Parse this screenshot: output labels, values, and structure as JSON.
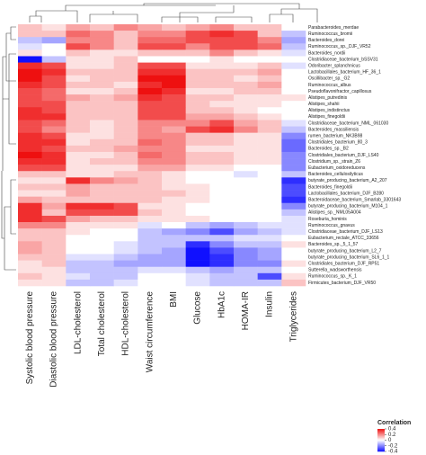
{
  "chart_data": {
    "type": "heatmap",
    "columns": [
      "Systolic blood pressure",
      "Diastolic blood pressure",
      "LDL-cholesterol",
      "Total cholesterol",
      "HDL-cholesterol",
      "Waist circumference",
      "BMI",
      "Glucose",
      "HbA1c",
      "HOMA-IR",
      "Insulin",
      "Triglycerides"
    ],
    "rows": [
      "Parabacteroides_merdae",
      "Ruminococcus_bromii",
      "Bacteroides_dorei",
      "Ruminococcus_sp._DJF_VR52",
      "Bacteroides_nordii",
      "Clostridiaceae_bacterium_bSSV31",
      "Odoribacter_splanchnicus",
      "Lactobacillales_bacterium_HF_36_1",
      "Oscillibacter_sp._G2",
      "Ruminococcus_albus",
      "Pseudoflavonifractor_capillosus",
      "Alistipes_putredinis",
      "Alistipes_shahii",
      "Alistipes_indistinctus",
      "Alistipes_finegoldii",
      "Clostridiaceae_bacterium_NML_061030",
      "Bacteroides_massiliensis",
      "rumen_bacterium_NK3B98",
      "Clostridiales_bacterium_80_3",
      "Bacteroides_sp._B2",
      "Clostridiales_bacterium_DJF_LS40",
      "Clostridium_sp._strain_Z6",
      "Eubacterium_oxidoreducens",
      "Bacteroides_cellulosilyticus",
      "butyrate_producing_bacterium_A2_207",
      "Bacteroides_finegoldii",
      "Lactobacillales_bacterium_DJF_B280",
      "Bacteroidaceae_bacterium_Smarlab_3301643",
      "butyrate_producing_bacterium_M104_1",
      "Alistipes_sp._NML05A004",
      "Roseburia_hominis",
      "Ruminococcus_gnavus",
      "Clostridiaceae_bacterium_DJF_LS13",
      "Eubacterium_rectale_ATCC_33656",
      "Bacteroides_sp._5_1_57",
      "butyrate_producing_bacterium_L2_7",
      "butyrate_producing_bacterium_SL6_1_1",
      "Clostridiales_bacterium_DJF_RP51",
      "Sutterella_wadsworthensis",
      "Ruminococcus_sp._K_1",
      "Firmicutes_bacterium_DJF_VR50"
    ],
    "values": [
      [
        0.1,
        0.05,
        0.15,
        0.1,
        0.2,
        0.15,
        0.1,
        0.15,
        0.2,
        0.1,
        0.1,
        0
      ],
      [
        0.1,
        0.1,
        0.25,
        0.2,
        0.1,
        0.2,
        0.2,
        0.3,
        0.35,
        0.3,
        0.1,
        -0.1
      ],
      [
        -0.1,
        -0.15,
        0.2,
        0.2,
        0.1,
        0.25,
        0.25,
        0.3,
        0.3,
        0.3,
        0.2,
        -0.15
      ],
      [
        -0.05,
        0,
        0.3,
        0.2,
        0.1,
        0.3,
        0.3,
        0.2,
        0.3,
        0.3,
        0.25,
        -0.1
      ],
      [
        0.05,
        0,
        0.1,
        0.05,
        0.05,
        0.1,
        0.1,
        0.1,
        0.2,
        0.1,
        0.05,
        -0.05
      ],
      [
        -0.4,
        -0.1,
        0.05,
        0.05,
        0.1,
        0,
        0,
        0,
        0.05,
        0,
        0,
        0
      ],
      [
        0.35,
        0.3,
        0.05,
        0.05,
        0.1,
        0.3,
        0.3,
        0.05,
        0.05,
        0.05,
        0.1,
        -0.05
      ],
      [
        0.4,
        0.35,
        0.1,
        0.1,
        0.1,
        0.35,
        0.35,
        0.1,
        0.1,
        0.1,
        0.15,
        0
      ],
      [
        0.4,
        0.3,
        0.05,
        0.1,
        0.1,
        0.4,
        0.4,
        0.1,
        0.1,
        0.05,
        0.1,
        0
      ],
      [
        0.35,
        0.3,
        0.1,
        0.1,
        0.05,
        0.35,
        0.4,
        0.1,
        0.1,
        0.1,
        0.15,
        0
      ],
      [
        0.3,
        0.25,
        0.05,
        0.05,
        0.1,
        0.4,
        0.35,
        0.05,
        0.05,
        0.1,
        0.1,
        0
      ],
      [
        0.3,
        0.25,
        0.15,
        0.1,
        0.15,
        0.35,
        0.3,
        0.1,
        0.1,
        0.05,
        0.05,
        0.05
      ],
      [
        0.3,
        0.3,
        0.1,
        0.1,
        0.1,
        0.3,
        0.3,
        0.1,
        0.05,
        0.05,
        0.05,
        0
      ],
      [
        0.35,
        0.3,
        0.1,
        0.1,
        0.1,
        0.3,
        0.3,
        0.1,
        0.1,
        0.05,
        0,
        0
      ],
      [
        0.35,
        0.35,
        0.1,
        0.1,
        0.1,
        0.3,
        0.3,
        0.15,
        0.15,
        0.1,
        0.05,
        0
      ],
      [
        0.3,
        0.25,
        0.1,
        0.05,
        0.1,
        0.2,
        0.2,
        0.2,
        0.3,
        0.15,
        0.1,
        -0.05
      ],
      [
        0.3,
        0.2,
        0.1,
        0.05,
        0.1,
        0.2,
        0.15,
        0.3,
        0.35,
        0.2,
        0.1,
        -0.1
      ],
      [
        0.35,
        0.3,
        0.05,
        0.05,
        0.1,
        0.2,
        0.2,
        0.1,
        0.1,
        0.05,
        0.05,
        -0.2
      ],
      [
        0.35,
        0.35,
        0.05,
        0.1,
        0.1,
        0.25,
        0.2,
        0.1,
        0.1,
        0.05,
        0.05,
        -0.25
      ],
      [
        0.35,
        0.3,
        0.1,
        0.1,
        0.15,
        0.2,
        0.2,
        0.05,
        0.05,
        0.05,
        0.05,
        -0.25
      ],
      [
        0.4,
        0.35,
        0.05,
        0.05,
        0.1,
        0.25,
        0.2,
        0.1,
        0.1,
        0.05,
        0.05,
        -0.2
      ],
      [
        0.35,
        0.35,
        0.05,
        0.1,
        0.1,
        0.2,
        0.2,
        0.1,
        0.1,
        0.05,
        0.05,
        -0.2
      ],
      [
        0.3,
        0.3,
        0.05,
        0.05,
        0.05,
        0.15,
        0.15,
        0.05,
        0.05,
        0,
        0,
        -0.2
      ],
      [
        0.1,
        0.1,
        0.05,
        0.05,
        0.1,
        0.1,
        0.05,
        0,
        0,
        -0.05,
        0,
        -0.1
      ],
      [
        0.05,
        0.05,
        0.35,
        0.2,
        0.15,
        0.1,
        0.05,
        0,
        0,
        0,
        0,
        -0.35
      ],
      [
        0.1,
        0.1,
        0.15,
        0.1,
        0.1,
        0.1,
        0.05,
        0.05,
        0,
        0,
        0,
        -0.3
      ],
      [
        0.05,
        0.05,
        0.15,
        0.1,
        0.1,
        0.1,
        0.1,
        0.05,
        0,
        0,
        0,
        -0.3
      ],
      [
        0.15,
        0.1,
        0.1,
        0.1,
        0.1,
        0.1,
        0.05,
        0.05,
        0,
        0,
        0,
        -0.35
      ],
      [
        0.35,
        0.15,
        0.35,
        0.35,
        0.3,
        0.05,
        0.05,
        0,
        0,
        0,
        0,
        -0.2
      ],
      [
        0.35,
        0.1,
        0.3,
        0.3,
        0.3,
        0.1,
        0.05,
        0,
        0,
        0,
        0,
        -0.1
      ],
      [
        0.35,
        0.3,
        0.15,
        0.1,
        0.1,
        0.05,
        0.05,
        0.05,
        0,
        0,
        0,
        -0.05
      ],
      [
        0.2,
        0.2,
        0.05,
        0.05,
        0.05,
        -0.05,
        0,
        -0.1,
        -0.15,
        -0.1,
        -0.05,
        -0.05
      ],
      [
        0.1,
        0.1,
        0.05,
        0,
        0,
        -0.1,
        -0.15,
        -0.2,
        -0.3,
        -0.15,
        -0.1,
        -0.05
      ],
      [
        0.1,
        0.1,
        0,
        0,
        0,
        -0.1,
        -0.1,
        -0.1,
        -0.1,
        -0.05,
        -0.05,
        0
      ],
      [
        0.15,
        0.1,
        0,
        0,
        -0.05,
        -0.1,
        -0.1,
        -0.35,
        -0.2,
        -0.1,
        -0.1,
        0.05
      ],
      [
        0.15,
        0.1,
        0,
        0,
        -0.05,
        -0.1,
        -0.15,
        -0.4,
        -0.3,
        -0.2,
        -0.15,
        0
      ],
      [
        0.1,
        0.1,
        -0.05,
        -0.05,
        -0.1,
        -0.15,
        -0.15,
        -0.4,
        -0.35,
        -0.2,
        -0.15,
        0
      ],
      [
        0.05,
        0.1,
        -0.1,
        -0.1,
        -0.15,
        -0.15,
        -0.15,
        -0.4,
        -0.35,
        -0.2,
        -0.2,
        0.05
      ],
      [
        0.05,
        0.05,
        -0.1,
        -0.1,
        -0.1,
        -0.05,
        -0.05,
        -0.1,
        -0.15,
        -0.1,
        -0.1,
        0
      ],
      [
        0.1,
        0.05,
        -0.05,
        -0.1,
        -0.1,
        0,
        0,
        -0.05,
        -0.1,
        -0.1,
        -0.3,
        0.05
      ],
      [
        0.05,
        0.05,
        -0.1,
        -0.1,
        -0.05,
        0,
        0,
        -0.05,
        -0.1,
        -0.1,
        -0.1,
        0.1
      ]
    ],
    "colorbar_title": "Correlation",
    "zlim": [
      -0.4,
      0.4
    ],
    "zticks": [
      0.4,
      0.2,
      0,
      -0.2,
      -0.4
    ],
    "colors": [
      "#1010ff",
      "#ffffff",
      "#ee1010"
    ]
  }
}
